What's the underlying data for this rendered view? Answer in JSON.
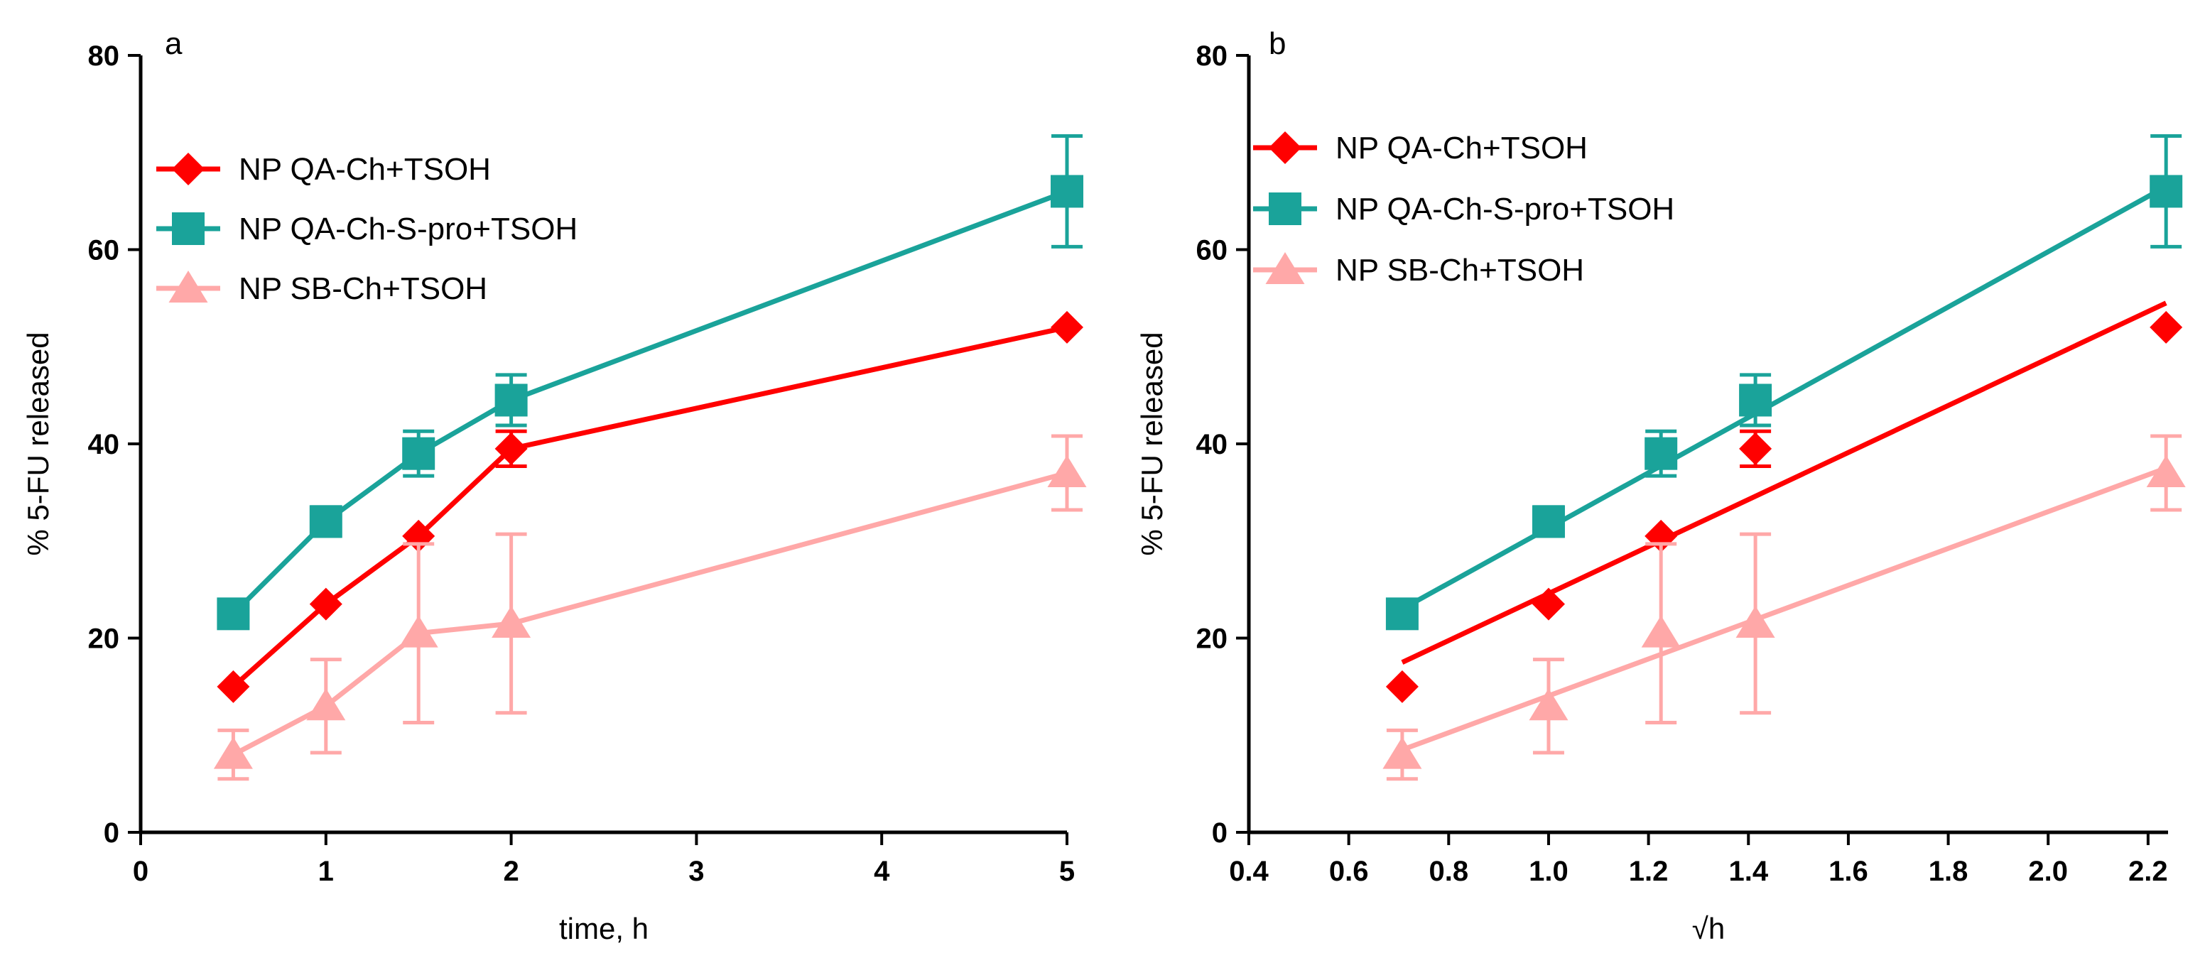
{
  "colors": {
    "qa_ch": "#ff0000",
    "qa_ch_spro": "#1aa39a",
    "sb_ch": "#ffa8a8"
  },
  "chart_data": [
    {
      "type": "line",
      "panel_label": "a",
      "xlabel": "time, h",
      "ylabel": "% 5-FU  released",
      "x_tick_labels": [
        "0",
        "1",
        "2",
        "3",
        "4",
        "5"
      ],
      "y_tick_labels": [
        "0",
        "20",
        "40",
        "60",
        "80"
      ],
      "xlim": [
        0,
        5
      ],
      "ylim": [
        0,
        80
      ],
      "legend_position": "top-left",
      "grid": false,
      "series": [
        {
          "name": "NP QA-Ch+TSOH",
          "marker": "diamond",
          "color": "#ff0000",
          "x": [
            0.5,
            1,
            1.5,
            2,
            5
          ],
          "y": [
            15,
            23.5,
            30.5,
            39.5,
            52
          ],
          "err": [
            0,
            0,
            0,
            1.8,
            0
          ]
        },
        {
          "name": "NP QA-Ch-S-pro+TSOH",
          "marker": "square",
          "color": "#1aa39a",
          "x": [
            0.5,
            1,
            1.5,
            2,
            5
          ],
          "y": [
            22.5,
            32,
            39,
            44.5,
            66
          ],
          "err": [
            0,
            1.5,
            2.3,
            2.6,
            5.7
          ]
        },
        {
          "name": "NP SB-Ch+TSOH",
          "marker": "triangle",
          "color": "#ffa8a8",
          "x": [
            0.5,
            1,
            1.5,
            2,
            5
          ],
          "y": [
            8,
            13,
            20.5,
            21.5,
            37
          ],
          "err": [
            2.5,
            4.8,
            9.2,
            9.2,
            3.8
          ]
        }
      ]
    },
    {
      "type": "scatter",
      "panel_label": "b",
      "xlabel": "√h",
      "ylabel": "% 5-FU  released",
      "x_tick_labels": [
        "0.4",
        "0.6",
        "0.8",
        "1.0",
        "1.2",
        "1.4",
        "1.6",
        "1.8",
        "2.0",
        "2.2"
      ],
      "y_tick_labels": [
        "0",
        "20",
        "40",
        "60",
        "80"
      ],
      "xlim": [
        0.4,
        2.24
      ],
      "ylim": [
        0,
        80
      ],
      "legend_position": "top-left",
      "grid": false,
      "series": [
        {
          "name": "NP QA-Ch+TSOH",
          "marker": "diamond",
          "color": "#ff0000",
          "x": [
            0.707,
            1,
            1.225,
            1.414,
            2.236
          ],
          "y": [
            15,
            23.5,
            30.5,
            39.5,
            52
          ],
          "err": [
            0,
            0,
            0,
            1.8,
            0
          ],
          "fit_line": {
            "x": [
              0.707,
              2.236
            ],
            "y": [
              17.5,
              54.5
            ]
          }
        },
        {
          "name": "NP QA-Ch-S-pro+TSOH",
          "marker": "square",
          "color": "#1aa39a",
          "x": [
            0.707,
            1,
            1.225,
            1.414,
            2.236
          ],
          "y": [
            22.5,
            32,
            39,
            44.5,
            66
          ],
          "err": [
            0,
            1.5,
            2.3,
            2.6,
            5.7
          ],
          "fit_line": {
            "x": [
              0.707,
              2.236
            ],
            "y": [
              23,
              66.5
            ]
          }
        },
        {
          "name": "NP SB-Ch+TSOH",
          "marker": "triangle",
          "color": "#ffa8a8",
          "x": [
            0.707,
            1,
            1.225,
            1.414,
            2.236
          ],
          "y": [
            8,
            13,
            20.5,
            21.5,
            37
          ],
          "err": [
            2.5,
            4.8,
            9.2,
            9.2,
            3.8
          ],
          "fit_line": {
            "x": [
              0.707,
              2.236
            ],
            "y": [
              8.5,
              37.5
            ]
          }
        }
      ]
    }
  ]
}
